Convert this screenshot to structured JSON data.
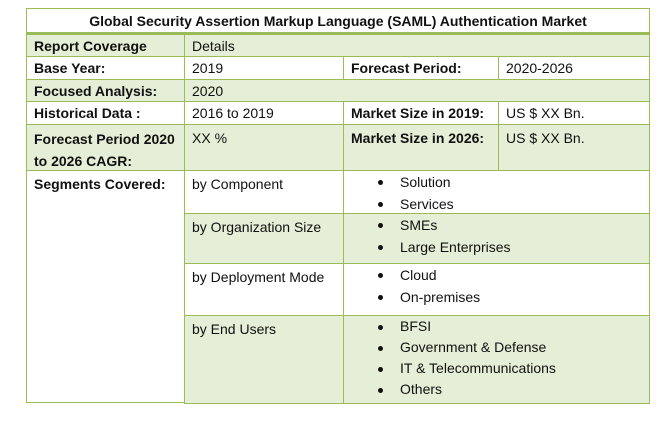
{
  "title": "Global Security Assertion Markup Language (SAML) Authentication Market",
  "rows": {
    "report_coverage": {
      "label": "Report Coverage",
      "value": "Details"
    },
    "base_year": {
      "label": "Base Year:",
      "value": "2019",
      "label2": "Forecast Period:",
      "value2": "2020-2026"
    },
    "focused": {
      "label": "Focused Analysis:",
      "value": "2020"
    },
    "historical": {
      "label": "Historical Data :",
      "value": "2016 to 2019",
      "label2": "Market Size in 2019:",
      "value2": "US $ XX Bn."
    },
    "cagr": {
      "label": "Forecast Period 2020 to 2026 CAGR:",
      "value": "XX %",
      "label2": "Market Size in 2026:",
      "value2": "US $ XX Bn."
    }
  },
  "segments_label": "Segments Covered:",
  "segments": [
    {
      "name": "by Component",
      "items": [
        "Solution",
        "Services"
      ]
    },
    {
      "name": "by Organization Size",
      "items": [
        "SMEs",
        "Large Enterprises"
      ]
    },
    {
      "name": "by Deployment Mode",
      "items": [
        "Cloud",
        "On-premises"
      ]
    },
    {
      "name": "by End Users",
      "items": [
        "BFSI",
        "Government & Defense",
        "IT & Telecommunications",
        "Others"
      ]
    }
  ]
}
